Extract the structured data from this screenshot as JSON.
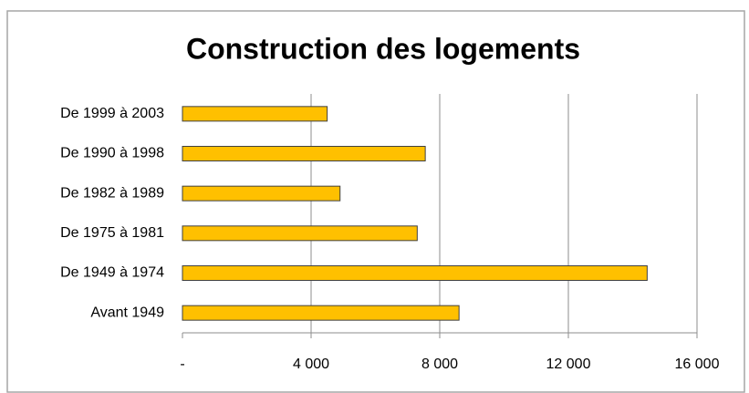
{
  "chart_data": {
    "type": "hbar",
    "title": "Construction des logements",
    "categories": [
      "De 1999 à 2003",
      "De 1990 à 1998",
      "De 1982 à 1989",
      "De 1975 à 1981",
      "De 1949 à 1974",
      "Avant 1949"
    ],
    "values": [
      4500,
      7550,
      4900,
      7300,
      14450,
      8600
    ],
    "color": "#ffc000",
    "xlim": [
      0,
      16000
    ],
    "xticks": [
      {
        "value": 0,
        "label": "-"
      },
      {
        "value": 4000,
        "label": "4 000"
      },
      {
        "value": 8000,
        "label": "8 000"
      },
      {
        "value": 12000,
        "label": "12 000"
      },
      {
        "value": 16000,
        "label": "16 000"
      }
    ],
    "grid": true
  }
}
